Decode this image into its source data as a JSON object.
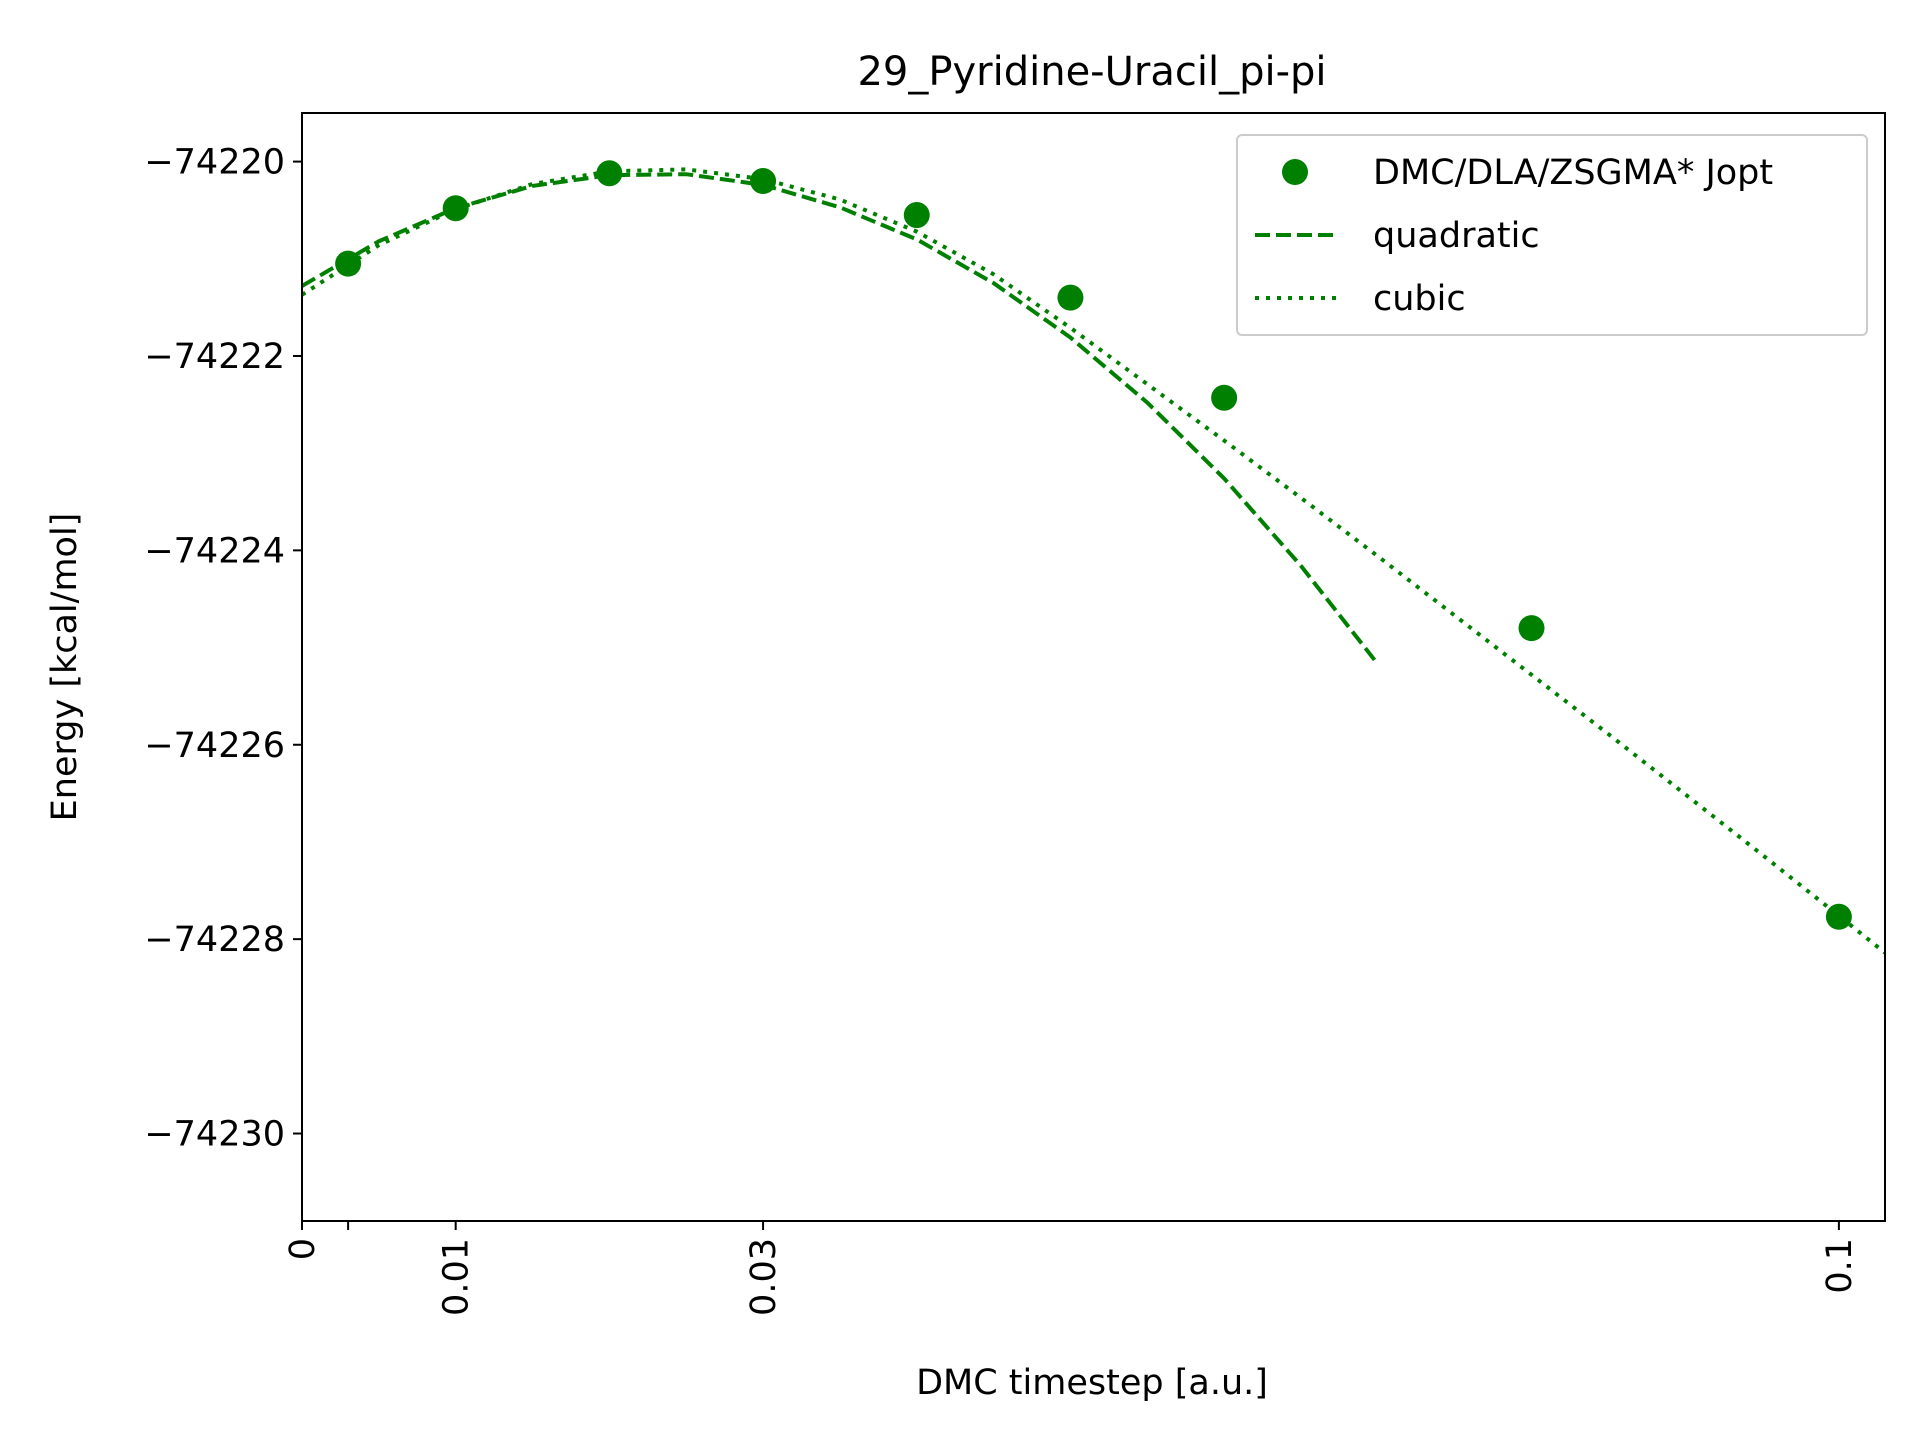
{
  "chart_data": {
    "type": "scatter",
    "title": "29_Pyridine-Uracil_pi-pi",
    "xlabel": "DMC timestep [a.u.]",
    "ylabel": "Energy [kcal/mol]",
    "xlim": [
      0,
      0.103
    ],
    "ylim": [
      -74230.9,
      -74219.5
    ],
    "x_ticks": [
      0,
      0.003,
      0.01,
      0.03,
      0.1
    ],
    "x_tick_labels": [
      "0",
      "",
      "0.01",
      "0.03",
      "0.1"
    ],
    "y_ticks": [
      -74220,
      -74222,
      -74224,
      -74226,
      -74228,
      -74230
    ],
    "y_tick_labels": [
      "−74220",
      "−74222",
      "−74224",
      "−74226",
      "−74228",
      "−74230"
    ],
    "grid": false,
    "legend_position": "top-right",
    "color": "#008000",
    "series": [
      {
        "name": "DMC/DLA/ZSGMA* Jopt",
        "style": "markers",
        "x": [
          0.003,
          0.01,
          0.02,
          0.03,
          0.04,
          0.05,
          0.06,
          0.08,
          0.1
        ],
        "y": [
          -74221.05,
          -74220.48,
          -74220.12,
          -74220.2,
          -74220.55,
          -74221.4,
          -74222.43,
          -74224.8,
          -74227.77
        ]
      },
      {
        "name": "quadratic",
        "style": "dashed",
        "x": [
          0,
          0.005,
          0.01,
          0.015,
          0.02,
          0.025,
          0.03,
          0.035,
          0.04,
          0.045,
          0.05,
          0.055,
          0.06,
          0.065,
          0.07
        ],
        "y": [
          -74221.28,
          -74220.82,
          -74220.48,
          -74220.25,
          -74220.14,
          -74220.13,
          -74220.24,
          -74220.47,
          -74220.8,
          -74221.25,
          -74221.81,
          -74222.48,
          -74223.26,
          -74224.16,
          -74225.17
        ]
      },
      {
        "name": "cubic",
        "style": "dotted",
        "x": [
          0,
          0.005,
          0.01,
          0.015,
          0.02,
          0.025,
          0.03,
          0.035,
          0.04,
          0.045,
          0.05,
          0.055,
          0.06,
          0.065,
          0.07,
          0.075,
          0.08,
          0.085,
          0.09,
          0.095,
          0.1,
          0.103
        ],
        "y": [
          -74221.37,
          -74220.86,
          -74220.49,
          -74220.23,
          -74220.1,
          -74220.08,
          -74220.18,
          -74220.39,
          -74220.72,
          -74221.16,
          -74221.71,
          -74222.29,
          -74222.87,
          -74223.46,
          -74224.06,
          -74224.67,
          -74225.28,
          -74225.89,
          -74226.51,
          -74227.13,
          -74227.76,
          -74228.14
        ]
      }
    ]
  }
}
